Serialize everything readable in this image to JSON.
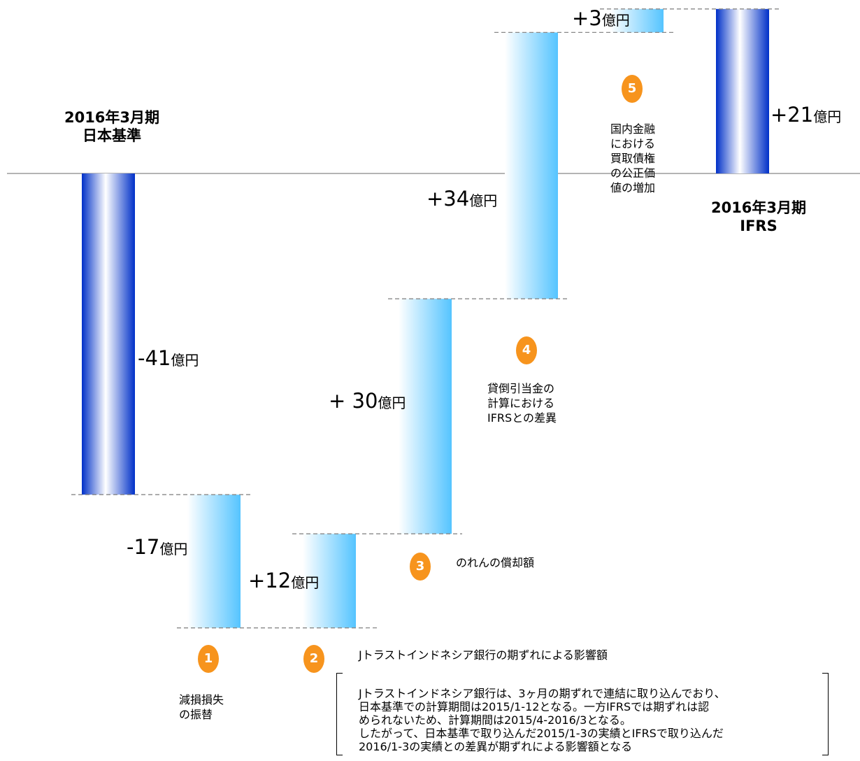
{
  "chart_data": {
    "type": "bar",
    "subtype": "waterfall",
    "unit": "億円",
    "categories": [
      "2016年3月期\n日本基準",
      "1",
      "2",
      "3",
      "4",
      "5",
      "2016年3月期\nIFRS"
    ],
    "values": [
      -41,
      -17,
      12,
      30,
      34,
      3,
      21
    ],
    "start_label": "2016年3月期\n日本基準",
    "end_label": "2016年3月期\nIFRS",
    "steps": [
      {
        "value": -41,
        "label": "-41",
        "unit": "億円",
        "kind": "total"
      },
      {
        "value": -17,
        "label": "-17",
        "unit": "億円",
        "kind": "delta",
        "badge": "1",
        "caption": "減損損失\nの振替"
      },
      {
        "value": 12,
        "label": "+12",
        "unit": "億円",
        "kind": "delta",
        "badge": "2",
        "caption": "Jトラストインドネシア銀行の期ずれによる影響額"
      },
      {
        "value": 30,
        "label": "+ 30",
        "unit": "億円",
        "kind": "delta",
        "badge": "3",
        "caption": "のれんの償却額"
      },
      {
        "value": 34,
        "label": "+34",
        "unit": "億円",
        "kind": "delta",
        "badge": "4",
        "caption": "貸倒引当金の\n計算における\nIFRSとの差異"
      },
      {
        "value": 3,
        "label": "+3",
        "unit": "億円",
        "kind": "delta",
        "badge": "5",
        "caption": "国内金融\nにおける\n買取債権\nの公正価\n値の増加"
      },
      {
        "value": 21,
        "label": "+21",
        "unit": "億円",
        "kind": "total"
      }
    ],
    "note": "Jトラストインドネシア銀行は、3ヶ月の期ずれで連結に取り込んでおり、\n日本基準での計算期間は2015/1-12となる。一方IFRSでは期ずれは認\nめられないため、計算期間は2015/4-2016/3となる。\nしたがって、日本基準で取り込んだ2015/1-3の実績とIFRSで取り込んだ\n2016/1-3の実績との差異が期ずれによる影響額となる",
    "colors": {
      "total": "#0033cc",
      "delta": "#66ccff",
      "badge": "#f7941d",
      "zero_line": "#888888",
      "connector": "#888888"
    }
  }
}
